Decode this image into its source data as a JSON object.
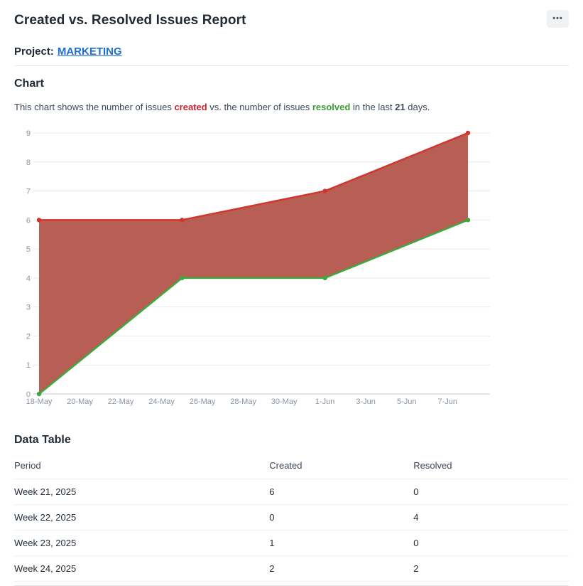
{
  "page": {
    "title": "Created vs. Resolved Issues Report"
  },
  "icons": {
    "more": "•••"
  },
  "project": {
    "label": "Project:",
    "name": "MARKETING"
  },
  "colors": {
    "link_blue": "#1d6fd1",
    "created_red": "#d2352b",
    "resolved_green": "#3fa73f",
    "area_fill": "#b4584e"
  },
  "chart_section": {
    "heading": "Chart",
    "description_parts": {
      "p1": "This chart shows the number of issues ",
      "created": "created",
      "p2": " vs. the number of issues ",
      "resolved": "resolved",
      "p3": " in the last ",
      "days": "21",
      "p4": " days."
    }
  },
  "chart_data": {
    "type": "area",
    "x_axis": {
      "tick_days": [
        0,
        2,
        4,
        6,
        8,
        10,
        12,
        14,
        16,
        18,
        20
      ],
      "tick_labels": [
        "18-May",
        "20-May",
        "22-May",
        "24-May",
        "26-May",
        "28-May",
        "30-May",
        "1-Jun",
        "3-Jun",
        "5-Jun",
        "7-Jun"
      ],
      "domain_days": [
        0,
        21.8
      ]
    },
    "y_axis": {
      "ylim": [
        0,
        9
      ],
      "tick_step": 1
    },
    "series": [
      {
        "name": "Created",
        "color": "#d2352b",
        "points": [
          {
            "day": 0,
            "value": 6
          },
          {
            "day": 7,
            "value": 6
          },
          {
            "day": 14,
            "value": 7
          },
          {
            "day": 21,
            "value": 9
          }
        ]
      },
      {
        "name": "Resolved",
        "color": "#3fa73f",
        "points": [
          {
            "day": 0,
            "value": 0
          },
          {
            "day": 7,
            "value": 4
          },
          {
            "day": 14,
            "value": 4
          },
          {
            "day": 21,
            "value": 6
          }
        ]
      }
    ],
    "fill_between": {
      "color": "#b4584e",
      "opacity": 0.96
    },
    "grid": "horizontal",
    "legend": "none"
  },
  "table_section": {
    "heading": "Data Table",
    "columns": [
      "Period",
      "Created",
      "Resolved"
    ],
    "rows": [
      [
        "Week 21, 2025",
        "6",
        "0"
      ],
      [
        "Week 22, 2025",
        "0",
        "4"
      ],
      [
        "Week 23, 2025",
        "1",
        "0"
      ],
      [
        "Week 24, 2025",
        "2",
        "2"
      ]
    ]
  }
}
